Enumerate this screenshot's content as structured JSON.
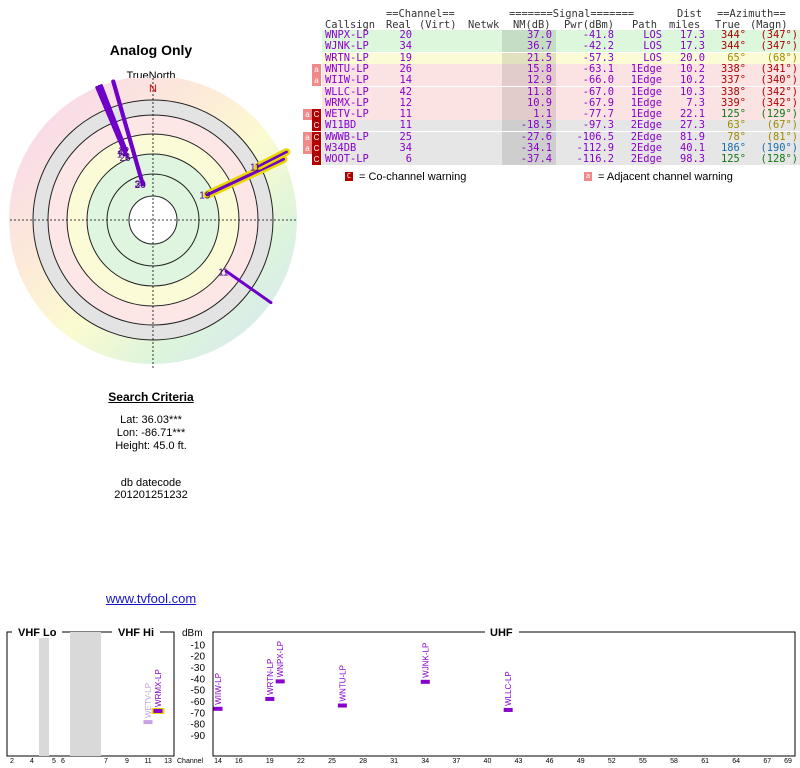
{
  "plot_title": "Analog Only",
  "north_label": "TrueNorth",
  "north_marker": "N",
  "search": {
    "heading": "Search Criteria",
    "lat": "Lat: 36.03***",
    "lon": "Lon: -86.71***",
    "height": "Height: 45.0 ft.",
    "datecode_label": "db datecode",
    "datecode": "201201251232"
  },
  "site_link": "www.tvfool.com",
  "table": {
    "group_channel": "==Channel==",
    "group_signal": "=======Signal=======",
    "group_dist": "Dist",
    "group_azimuth": "==Azimuth==",
    "headers": [
      "Callsign",
      "Real",
      "(Virt)",
      "Netwk",
      "NM(dB)",
      "Pwr(dBm)",
      "Path",
      "miles",
      "True",
      "(Magn)"
    ],
    "rows": [
      {
        "callsign": "WNPX-LP",
        "real": "20",
        "virt": "",
        "netwk": "",
        "nm": "37.0",
        "pwr": "-41.8",
        "path": "LOS",
        "dist": "17.3",
        "az_true": "344°",
        "az_magn": "(347°)",
        "bg": "#dcf7dc",
        "azcolor": "#b00000",
        "badge": ""
      },
      {
        "callsign": "WJNK-LP",
        "real": "34",
        "virt": "",
        "netwk": "",
        "nm": "36.7",
        "pwr": "-42.2",
        "path": "LOS",
        "dist": "17.3",
        "az_true": "344°",
        "az_magn": "(347°)",
        "bg": "#dcf7dc",
        "azcolor": "#b00000",
        "badge": ""
      },
      {
        "callsign": "WRTN-LP",
        "real": "19",
        "virt": "",
        "netwk": "",
        "nm": "21.5",
        "pwr": "-57.3",
        "path": "LOS",
        "dist": "20.0",
        "az_true": "65°",
        "az_magn": "(68°)",
        "bg": "#fbfbd6",
        "azcolor": "#a08a00",
        "badge": ""
      },
      {
        "callsign": "WNTU-LP",
        "real": "26",
        "virt": "",
        "netwk": "",
        "nm": "15.8",
        "pwr": "-63.1",
        "path": "1Edge",
        "dist": "10.2",
        "az_true": "338°",
        "az_magn": "(341°)",
        "bg": "#fbe3e3",
        "azcolor": "#b00000",
        "badge": "a"
      },
      {
        "callsign": "WIIW-LP",
        "real": "14",
        "virt": "",
        "netwk": "",
        "nm": "12.9",
        "pwr": "-66.0",
        "path": "1Edge",
        "dist": "10.2",
        "az_true": "337°",
        "az_magn": "(340°)",
        "bg": "#fbe3e3",
        "azcolor": "#b00000",
        "badge": "a"
      },
      {
        "callsign": "WLLC-LP",
        "real": "42",
        "virt": "",
        "netwk": "",
        "nm": "11.8",
        "pwr": "-67.0",
        "path": "1Edge",
        "dist": "10.3",
        "az_true": "338°",
        "az_magn": "(342°)",
        "bg": "#fbe3e3",
        "azcolor": "#b00000",
        "badge": ""
      },
      {
        "callsign": "WRMX-LP",
        "real": "12",
        "virt": "",
        "netwk": "",
        "nm": "10.9",
        "pwr": "-67.9",
        "path": "1Edge",
        "dist": "7.3",
        "az_true": "339°",
        "az_magn": "(342°)",
        "bg": "#fbe3e3",
        "azcolor": "#b00000",
        "badge": ""
      },
      {
        "callsign": "WETV-LP",
        "real": "11",
        "virt": "",
        "netwk": "",
        "nm": "1.1",
        "pwr": "-77.7",
        "path": "1Edge",
        "dist": "22.1",
        "az_true": "125°",
        "az_magn": "(129°)",
        "bg": "#fbe3e3",
        "azcolor": "#117711",
        "badge": "aC"
      },
      {
        "callsign": "W11BD",
        "real": "11",
        "virt": "",
        "netwk": "",
        "nm": "-18.5",
        "pwr": "-97.3",
        "path": "2Edge",
        "dist": "27.3",
        "az_true": "63°",
        "az_magn": "(67°)",
        "bg": "#e6e6e6",
        "azcolor": "#a08a00",
        "badge": "C"
      },
      {
        "callsign": "WWWB-LP",
        "real": "25",
        "virt": "",
        "netwk": "",
        "nm": "-27.6",
        "pwr": "-106.5",
        "path": "2Edge",
        "dist": "81.9",
        "az_true": "78°",
        "az_magn": "(81°)",
        "bg": "#e6e6e6",
        "azcolor": "#a08a00",
        "badge": "aC"
      },
      {
        "callsign": "W34DB",
        "real": "34",
        "virt": "",
        "netwk": "",
        "nm": "-34.1",
        "pwr": "-112.9",
        "path": "2Edge",
        "dist": "40.1",
        "az_true": "186°",
        "az_magn": "(190°)",
        "bg": "#e6e6e6",
        "azcolor": "#1a6fb0",
        "badge": "aC"
      },
      {
        "callsign": "WOOT-LP",
        "real": "6",
        "virt": "",
        "netwk": "",
        "nm": "-37.4",
        "pwr": "-116.2",
        "path": "2Edge",
        "dist": "98.3",
        "az_true": "125°",
        "az_magn": "(128°)",
        "bg": "#e6e6e6",
        "azcolor": "#117711",
        "badge": "C"
      }
    ]
  },
  "legend": {
    "co_symbol": "C",
    "co_text": "= Co-channel warning",
    "adj_symbol": "a",
    "adj_text": "= Adjacent channel warning"
  },
  "spectrum": {
    "vhf_lo": "VHF Lo",
    "vhf_hi": "VHF Hi",
    "uhf": "UHF",
    "dbm_label": "dBm",
    "channel_label": "Channel",
    "db_ticks": [
      "-10",
      "-20",
      "-30",
      "-40",
      "-50",
      "-60",
      "-70",
      "-80",
      "-90"
    ],
    "vhf_ticks": [
      "2",
      "4",
      "5",
      "6",
      "7",
      "9",
      "11",
      "13"
    ],
    "uhf_ticks": [
      "14",
      "16",
      "19",
      "22",
      "25",
      "28",
      "31",
      "34",
      "37",
      "40",
      "43",
      "46",
      "49",
      "52",
      "55",
      "58",
      "61",
      "64",
      "67",
      "69"
    ],
    "stations": [
      {
        "name": "WNPX-LP",
        "channel": 20,
        "dbm": -41.8,
        "color": "#8800cc"
      },
      {
        "name": "WJNK-LP",
        "channel": 34,
        "dbm": -42.2,
        "color": "#8800cc"
      },
      {
        "name": "WRTN-LP",
        "channel": 19,
        "dbm": -57.3,
        "color": "#8800cc"
      },
      {
        "name": "WNTU-LP",
        "channel": 26,
        "dbm": -63.1,
        "color": "#8800cc"
      },
      {
        "name": "WIIW-LP",
        "channel": 14,
        "dbm": -66.0,
        "color": "#8800cc"
      },
      {
        "name": "WLLC-LP",
        "channel": 42,
        "dbm": -67.0,
        "color": "#8800cc"
      },
      {
        "name": "WRMX-LP",
        "channel": 12,
        "dbm": -67.9,
        "color": "#8800cc"
      },
      {
        "name": "WETV-LP",
        "channel": 11,
        "dbm": -77.7,
        "color": "#c9a2e6"
      }
    ]
  },
  "radar": {
    "stations": [
      {
        "label": "12",
        "az": 339,
        "dist": 7.3,
        "nm": 10.9
      },
      {
        "label": "42",
        "az": 338,
        "dist": 10.3,
        "nm": 11.8
      },
      {
        "label": "14",
        "az": 337,
        "dist": 10.2,
        "nm": 12.9
      },
      {
        "label": "26",
        "az": 338,
        "dist": 10.2,
        "nm": 15.8
      },
      {
        "label": "34",
        "az": 344,
        "dist": 17.3,
        "nm": 36.7
      },
      {
        "label": "20",
        "az": 344,
        "dist": 17.3,
        "nm": 37.0
      },
      {
        "label": "19",
        "az": 65,
        "dist": 20.0,
        "nm": 21.5
      },
      {
        "label": "11",
        "az": 63,
        "dist": 27.3,
        "nm": -18.5
      },
      {
        "label": "11",
        "az": 125,
        "dist": 22.1,
        "nm": 1.1
      }
    ]
  }
}
